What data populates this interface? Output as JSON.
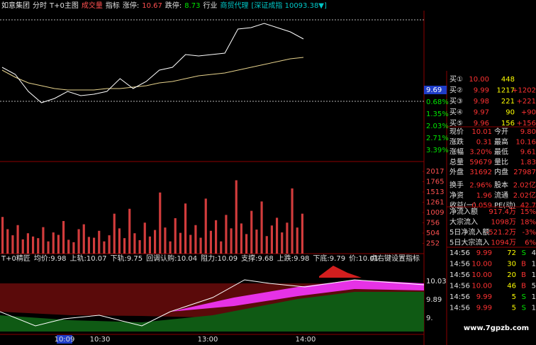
{
  "header": {
    "items": [
      {
        "text": "如意集团",
        "color": "#e0e0e0"
      },
      {
        "text": "分时",
        "color": "#e0e0e0"
      },
      {
        "text": "T+0主图",
        "color": "#e0e0e0"
      },
      {
        "text": "成交量",
        "color": "#ff5050"
      },
      {
        "text": "指标",
        "color": "#e0e0e0"
      },
      {
        "text": "涨停:",
        "color": "#e0e0e0"
      },
      {
        "text": "10.67",
        "color": "#ff5050"
      },
      {
        "text": "跌停:",
        "color": "#e0e0e0"
      },
      {
        "text": "8.73",
        "color": "#00e600"
      },
      {
        "text": "行业",
        "color": "#e0e0e0"
      },
      {
        "text": "商贸代理",
        "color": "#00c8c8"
      },
      {
        "text": "[深证成指 10093.38▼]",
        "color": "#00c8c8"
      }
    ]
  },
  "price_chart": {
    "prices": [
      9.85,
      9.8,
      9.68,
      9.6,
      9.63,
      9.68,
      9.65,
      9.66,
      9.68,
      9.77,
      9.7,
      9.75,
      9.83,
      9.85,
      9.94,
      9.93,
      9.94,
      9.95,
      10.12,
      10.13,
      10.16,
      10.13,
      10.1,
      10.05
    ],
    "average": [
      9.83,
      9.78,
      9.74,
      9.72,
      9.7,
      9.69,
      9.69,
      9.69,
      9.7,
      9.7,
      9.71,
      9.72,
      9.74,
      9.75,
      9.77,
      9.79,
      9.8,
      9.81,
      9.83,
      9.85,
      9.87,
      9.89,
      9.91,
      9.92
    ],
    "price_color": "#ffffff",
    "average_color": "#e6d28c",
    "axis_labels": [
      "9.69",
      "0.68%",
      "1.35%",
      "2.03%",
      "2.71%",
      "3.39%"
    ]
  },
  "volume_chart": {
    "values": [
      900,
      600,
      450,
      700,
      350,
      500,
      420,
      380,
      650,
      300,
      520,
      460,
      800,
      340,
      280,
      600,
      720,
      410,
      390,
      560,
      300,
      450,
      980,
      620,
      380,
      1100,
      500,
      330,
      760,
      420,
      580,
      1500,
      640,
      300,
      870,
      510,
      1230,
      460,
      700,
      390,
      1350,
      560,
      820,
      300,
      950,
      620,
      1800,
      740,
      480,
      1050,
      590,
      1280,
      430,
      690,
      880,
      520,
      760,
      1600,
      640,
      980
    ],
    "color": "#d23c3c",
    "ylim": [
      0,
      2017
    ],
    "yticks": [
      2017,
      1765,
      1513,
      1261,
      1009,
      756,
      504,
      252
    ]
  },
  "indicator": {
    "items": [
      "T+0精匠",
      "均价:9.98",
      "上轨:10.07",
      "下轨:9.75",
      "回调认购:10.04",
      "阻力:10.09",
      "支撑:9.68",
      "上跌:9.98",
      "下底:9.79",
      "价:10.01"
    ],
    "hint": "点右键设置指标",
    "axis_labels": [
      "10.03",
      "9.89",
      "9."
    ]
  },
  "time_axis": {
    "labels": [
      "10:09",
      "10:30",
      "13:00",
      "14:00"
    ]
  },
  "order_book": [
    {
      "label": "买①",
      "price": "10.00",
      "volume": "448"
    },
    {
      "label": "买②",
      "price": "9.99",
      "volume": "1217",
      "change": "+1202"
    },
    {
      "label": "买③",
      "price": "9.98",
      "volume": "221",
      "change": "+221"
    },
    {
      "label": "买④",
      "price": "9.97",
      "volume": "90",
      "change": "+90"
    },
    {
      "label": "买⑤",
      "price": "9.96",
      "volume": "156",
      "change": "+156"
    }
  ],
  "stats": [
    [
      "现价",
      "10.01",
      "今开",
      "9.80"
    ],
    [
      "涨跌",
      "0.31",
      "最高",
      "10.16"
    ],
    [
      "涨幅",
      "3.20%",
      "最低",
      "9.61"
    ],
    [
      "总量",
      "59679",
      "量比",
      "1.83"
    ],
    [
      "外盘",
      "31692",
      "内盘",
      "27987"
    ],
    [
      "换手",
      "2.96%",
      "股本",
      "2.02亿"
    ],
    [
      "净资",
      "1.96",
      "流通",
      "2.02亿"
    ],
    [
      "收益(一)",
      "0.059",
      "PE(动)",
      "42.7"
    ]
  ],
  "flows": [
    [
      "净流入额",
      "917.4万",
      "15%"
    ],
    [
      "大宗流入",
      "1098万",
      "18%"
    ],
    [
      "5日净流入额",
      "-521.2万",
      "-3%"
    ],
    [
      "5日大宗流入",
      "1094万",
      "6%"
    ]
  ],
  "trades": [
    {
      "cells": [
        "14:56",
        "9.99",
        "72",
        "S",
        "4"
      ],
      "color": "#00e600"
    },
    {
      "cells": [
        "14:56",
        "10.00",
        "30",
        "B",
        "1"
      ],
      "color": "#ff3232"
    },
    {
      "cells": [
        "14:56",
        "10.00",
        "20",
        "B",
        "1"
      ],
      "color": "#ff3232"
    },
    {
      "cells": [
        "14:56",
        "10.00",
        "46",
        "B",
        "5"
      ],
      "color": "#ff3232"
    },
    {
      "cells": [
        "14:56",
        "9.99",
        "5",
        "S",
        "1"
      ],
      "color": "#00e600"
    },
    {
      "cells": [
        "14:56",
        "9.99",
        "5",
        "S",
        "1"
      ],
      "color": "#00e600"
    }
  ],
  "watermark": "www.7gpzb.com"
}
